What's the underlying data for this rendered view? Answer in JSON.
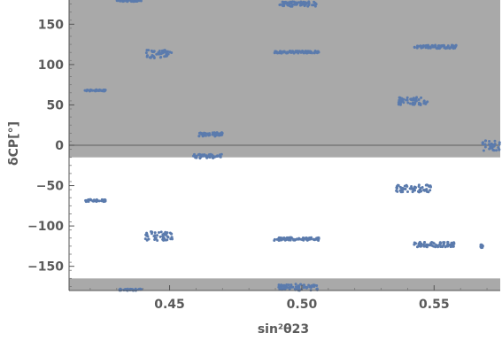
{
  "chart_data": {
    "type": "scatter",
    "xlabel": "sin²θ23",
    "ylabel": "δCP[°]",
    "xlim": [
      0.412,
      0.575
    ],
    "ylim": [
      -180,
      180
    ],
    "x_ticks": [
      0.45,
      0.5,
      0.55
    ],
    "x_tick_labels": [
      "0.45",
      "0.50",
      "0.55"
    ],
    "y_ticks": [
      -150,
      -100,
      -50,
      0,
      50,
      100,
      150
    ],
    "y_tick_labels": [
      "−150",
      "−100",
      "−50",
      "0",
      "50",
      "100",
      "150"
    ],
    "grid": false,
    "legend": "none",
    "shaded_regions": [
      {
        "y_from": -15,
        "y_to": 180,
        "color": "#a9a9a9"
      },
      {
        "y_from": -180,
        "y_to": -165,
        "color": "#a9a9a9"
      }
    ],
    "reference_line": {
      "y": 0,
      "color": "#6e6e6e"
    },
    "series": [
      {
        "color": "#5b7bad",
        "clusters": [
          {
            "x": [
              0.43,
              0.4395
            ],
            "y": [
              178,
              180
            ]
          },
          {
            "x": [
              0.4915,
              0.5055
            ],
            "y": [
              172,
              178
            ]
          },
          {
            "x": [
              0.441,
              0.451
            ],
            "y": [
              108,
              118
            ]
          },
          {
            "x": [
              0.4895,
              0.5065
            ],
            "y": [
              114,
              117
            ]
          },
          {
            "x": [
              0.5425,
              0.5585
            ],
            "y": [
              120,
              124
            ]
          },
          {
            "x": [
              0.418,
              0.426
            ],
            "y": [
              67,
              69
            ]
          },
          {
            "x": [
              0.5365,
              0.548
            ],
            "y": [
              50,
              60
            ]
          },
          {
            "x": [
              0.461,
              0.47
            ],
            "y": [
              11,
              16
            ]
          },
          {
            "x": [
              0.568,
              0.575
            ],
            "y": [
              -7,
              6
            ]
          },
          {
            "x": [
              0.459,
              0.47
            ],
            "y": [
              -16,
              -11
            ]
          },
          {
            "x": [
              0.418,
              0.426
            ],
            "y": [
              -70,
              -67
            ]
          },
          {
            "x": [
              0.5355,
              0.5495
            ],
            "y": [
              -58,
              -49
            ]
          },
          {
            "x": [
              0.44,
              0.451
            ],
            "y": [
              -118,
              -107
            ]
          },
          {
            "x": [
              0.4895,
              0.5065
            ],
            "y": [
              -118,
              -114
            ]
          },
          {
            "x": [
              0.542,
              0.558
            ],
            "y": [
              -126,
              -120
            ]
          },
          {
            "x": [
              0.5675,
              0.5685
            ],
            "y": [
              -127,
              -123
            ]
          },
          {
            "x": [
              0.431,
              0.4395
            ],
            "y": [
              -180,
              -178
            ]
          },
          {
            "x": [
              0.491,
              0.506
            ],
            "y": [
              -180,
              -172
            ]
          }
        ]
      }
    ]
  }
}
